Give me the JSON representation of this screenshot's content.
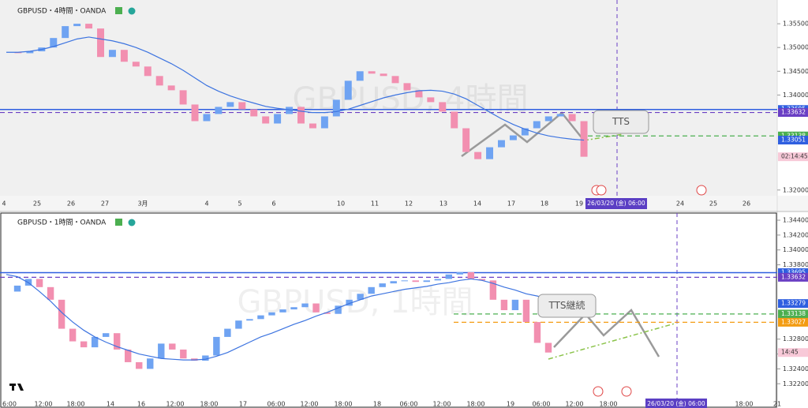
{
  "panels": [
    {
      "header": "GBPUSD・4時間・OANDA",
      "watermark": "GBPUSD, 4時間",
      "annotation": "TTS",
      "ylim": [
        1.3188,
        1.36
      ],
      "yticks": [
        {
          "value": 1.355,
          "label": "1.35500"
        },
        {
          "value": 1.35,
          "label": "1.35000"
        },
        {
          "value": 1.345,
          "label": "1.34500"
        },
        {
          "value": 1.34,
          "label": "1.34000"
        },
        {
          "value": 1.32,
          "label": "1.32000"
        }
      ],
      "x_labels": [
        "4",
        "25",
        "26",
        "27",
        "3月",
        "4",
        "5",
        "6",
        "10",
        "11",
        "12",
        "13",
        "14",
        "17",
        "18",
        "19",
        "24",
        "25",
        "26"
      ],
      "cursor_label": "26/03/20 (金) 06:00",
      "countdown": "02:14:45",
      "up_color": "#6fa3f2",
      "down_color": "#f28fb0",
      "ma_color": "#3d74e0",
      "closes": [
        1.349,
        1.3488,
        1.3492,
        1.35,
        1.352,
        1.3545,
        1.355,
        1.354,
        1.348,
        1.3495,
        1.347,
        1.346,
        1.344,
        1.342,
        1.341,
        1.338,
        1.3345,
        1.336,
        1.3375,
        1.3385,
        1.337,
        1.3355,
        1.334,
        1.336,
        1.3375,
        1.334,
        1.333,
        1.3355,
        1.339,
        1.343,
        1.345,
        1.3445,
        1.344,
        1.3425,
        1.341,
        1.3395,
        1.3385,
        1.3365,
        1.333,
        1.328,
        1.3265,
        1.329,
        1.3305,
        1.3315,
        1.333,
        1.3345,
        1.3355,
        1.336,
        1.3345,
        1.327
      ],
      "ma": [
        1.349,
        1.349,
        1.3492,
        1.3496,
        1.3502,
        1.351,
        1.3518,
        1.3522,
        1.3518,
        1.3514,
        1.3508,
        1.35,
        1.349,
        1.3478,
        1.3466,
        1.3452,
        1.3436,
        1.342,
        1.3408,
        1.3398,
        1.339,
        1.3383,
        1.3376,
        1.3372,
        1.3369,
        1.3366,
        1.3363,
        1.3363,
        1.3365,
        1.337,
        1.3378,
        1.3386,
        1.3394,
        1.34,
        1.3405,
        1.3409,
        1.341,
        1.3408,
        1.3402,
        1.3392,
        1.3378,
        1.3364,
        1.335,
        1.3338,
        1.3328,
        1.332,
        1.3314,
        1.331,
        1.3307,
        1.3305
      ],
      "price_lines": [
        {
          "value": 1.33695,
          "label": "1.33695",
          "color": "#2f5fe0",
          "line": "solid"
        },
        {
          "value": 1.33632,
          "label": "1.33632",
          "color": "#6a3fc4",
          "line": "dashed"
        },
        {
          "value": 1.33138,
          "label": "1.33138",
          "color": "#4caf50",
          "line": "dashed-right"
        },
        {
          "value": 1.33051,
          "label": "1.33051",
          "color": "#2f5fe0",
          "line": "none"
        }
      ]
    },
    {
      "header": "GBPUSD・1時間・OANDA",
      "watermark": "GBPUSD, 1時間",
      "annotation": "TTS継続",
      "ylim": [
        1.32001,
        1.34496
      ],
      "yticks": [
        {
          "value": 1.344,
          "label": "1.34400"
        },
        {
          "value": 1.342,
          "label": "1.34200"
        },
        {
          "value": 1.34,
          "label": "1.34000"
        },
        {
          "value": 1.338,
          "label": "1.33800"
        },
        {
          "value": 1.328,
          "label": "1.32800"
        },
        {
          "value": 1.326,
          "label": "1.32600"
        },
        {
          "value": 1.324,
          "label": "1.32400"
        },
        {
          "value": 1.322,
          "label": "1.32200"
        }
      ],
      "x_labels": [
        "6:00",
        "12:00",
        "18:00",
        "14",
        "16",
        "12:00",
        "18:00",
        "17",
        "06:00",
        "12:00",
        "18:00",
        "18",
        "06:00",
        "12:00",
        "18:00",
        "19",
        "06:00",
        "12:00",
        "18:00",
        "18:00",
        "21"
      ],
      "cursor_label": "26/03/20 (金) 06:00",
      "countdown": "14:45",
      "up_color": "#6fa3f2",
      "down_color": "#f28fb0",
      "ma_color": "#3d74e0",
      "closes": [
        1.3344,
        1.3352,
        1.3361,
        1.335,
        1.3333,
        1.3294,
        1.3277,
        1.3269,
        1.3283,
        1.3288,
        1.3266,
        1.3249,
        1.324,
        1.3254,
        1.3274,
        1.3266,
        1.3254,
        1.3251,
        1.3258,
        1.3283,
        1.3294,
        1.3305,
        1.3307,
        1.3312,
        1.3316,
        1.332,
        1.3323,
        1.3328,
        1.3316,
        1.3314,
        1.3325,
        1.3333,
        1.3341,
        1.335,
        1.3355,
        1.3358,
        1.3359,
        1.3357,
        1.3359,
        1.3361,
        1.3367,
        1.337,
        1.3361,
        1.3359,
        1.3333,
        1.3319,
        1.3333,
        1.3303,
        1.3275,
        1.3262
      ],
      "ma": [
        1.3367,
        1.3364,
        1.3356,
        1.3344,
        1.3331,
        1.3316,
        1.3303,
        1.3292,
        1.3283,
        1.3276,
        1.327,
        1.3265,
        1.326,
        1.3257,
        1.3254,
        1.3253,
        1.3252,
        1.3252,
        1.3253,
        1.3257,
        1.3262,
        1.3269,
        1.3276,
        1.3283,
        1.3288,
        1.3294,
        1.33,
        1.3305,
        1.3311,
        1.3316,
        1.3322,
        1.3328,
        1.3333,
        1.3338,
        1.3341,
        1.3344,
        1.3347,
        1.3349,
        1.3351,
        1.3354,
        1.3356,
        1.3359,
        1.3361,
        1.3359,
        1.3355,
        1.335,
        1.3346,
        1.3341,
        1.3338,
        1.3334
      ],
      "price_lines": [
        {
          "value": 1.33695,
          "label": "1.33695",
          "color": "#2f5fe0",
          "line": "solid"
        },
        {
          "value": 1.33632,
          "label": "1.33632",
          "color": "#6a3fc4",
          "line": "dashed"
        },
        {
          "value": 1.33279,
          "label": "1.33279",
          "color": "#2f5fe0",
          "line": "none"
        },
        {
          "value": 1.33138,
          "label": "1.33138",
          "color": "#4caf50",
          "line": "dashed-right"
        },
        {
          "value": 1.33027,
          "label": "1.33027",
          "color": "#f39c12",
          "line": "dashed-right"
        }
      ]
    }
  ]
}
